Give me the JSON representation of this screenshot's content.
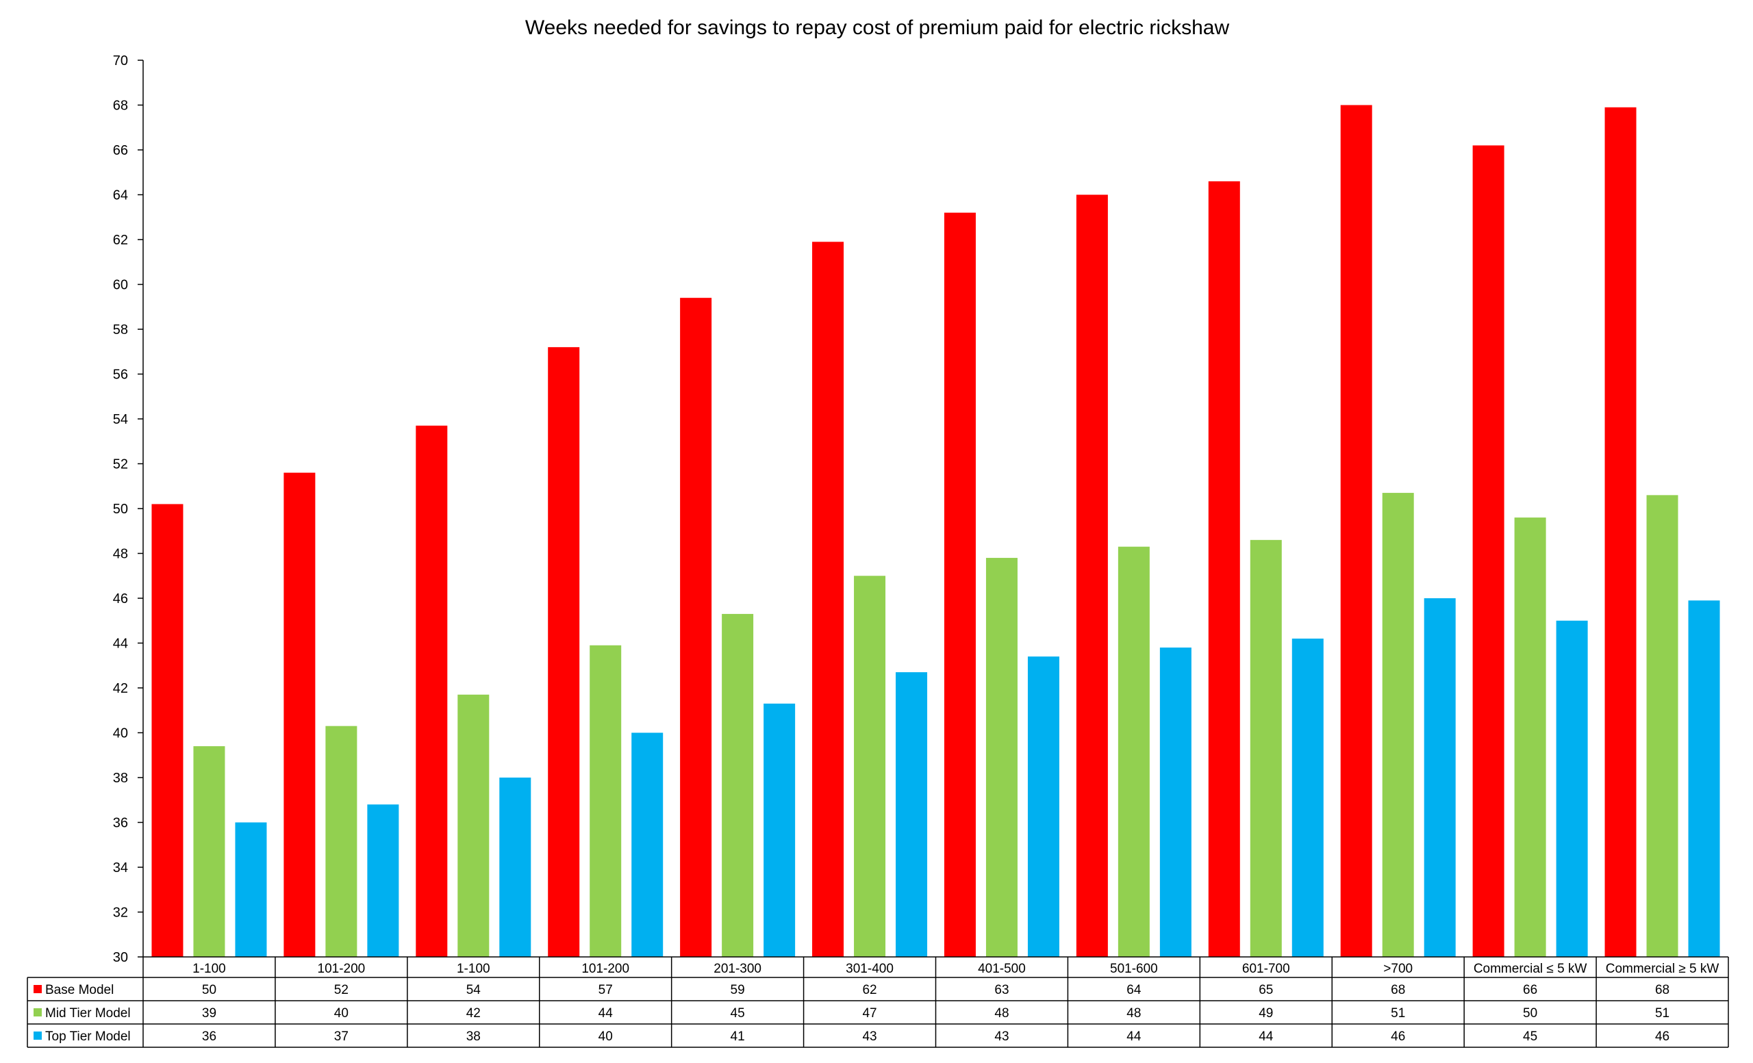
{
  "chart_data": {
    "type": "bar",
    "title": "Weeks needed for savings to repay cost of premium paid for electric rickshaw",
    "xlabel": "",
    "ylabel": "",
    "ylim": [
      30,
      70
    ],
    "yticks": [
      30,
      32,
      34,
      36,
      38,
      40,
      42,
      44,
      46,
      48,
      50,
      52,
      54,
      56,
      58,
      60,
      62,
      64,
      66,
      68,
      70
    ],
    "grid": false,
    "legend": "data-table-left",
    "categories": [
      "1-100",
      "101-200",
      "1-100",
      "101-200",
      "201-300",
      "301-400",
      "401-500",
      "501-600",
      "601-700",
      ">700",
      "Commercial ≤ 5 kW",
      "Commercial ≥ 5 kW"
    ],
    "series": [
      {
        "name": "Base Model",
        "color": "#ff0000",
        "values": [
          50.2,
          51.6,
          53.7,
          57.2,
          59.4,
          61.9,
          63.2,
          64.0,
          64.6,
          68.0,
          66.2,
          67.9
        ],
        "table_labels": [
          "50",
          "52",
          "54",
          "57",
          "59",
          "62",
          "63",
          "64",
          "65",
          "68",
          "66",
          "68"
        ]
      },
      {
        "name": "Mid Tier Model",
        "color": "#92d050",
        "values": [
          39.4,
          40.3,
          41.7,
          43.9,
          45.3,
          47.0,
          47.8,
          48.3,
          48.6,
          50.7,
          49.6,
          50.6
        ],
        "table_labels": [
          "39",
          "40",
          "42",
          "44",
          "45",
          "47",
          "48",
          "48",
          "49",
          "51",
          "50",
          "51"
        ]
      },
      {
        "name": "Top Tier Model",
        "color": "#00b0f0",
        "values": [
          36.0,
          36.8,
          38.0,
          40.0,
          41.3,
          42.7,
          43.4,
          43.8,
          44.2,
          46.0,
          45.0,
          45.9
        ],
        "table_labels": [
          "36",
          "37",
          "38",
          "40",
          "41",
          "43",
          "43",
          "44",
          "44",
          "46",
          "45",
          "46"
        ]
      }
    ]
  }
}
